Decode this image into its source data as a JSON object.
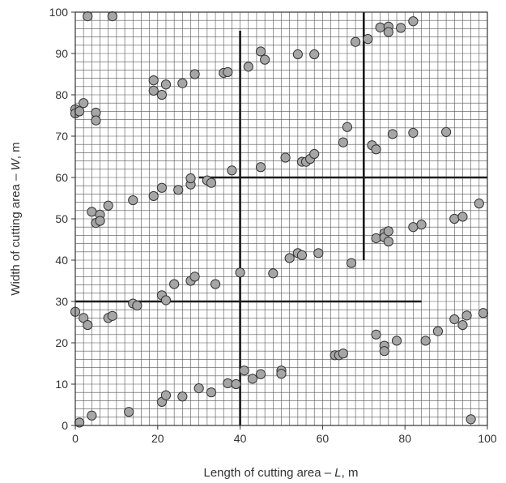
{
  "chart_data": {
    "type": "scatter",
    "title": "",
    "xlabel": "Length of cutting area – L, m",
    "xlabel_prefix": "Length of cutting area – ",
    "xlabel_var": "L",
    "xlabel_suffix": ", m",
    "ylabel": "Width of cutting area – W, m",
    "ylabel_prefix": "Width of cutting area – ",
    "ylabel_var": "W",
    "ylabel_suffix": ", m",
    "xlim": [
      0,
      100
    ],
    "ylim": [
      0,
      100
    ],
    "x_ticks": [
      0,
      20,
      40,
      60,
      80,
      100
    ],
    "y_ticks": [
      0,
      10,
      20,
      30,
      40,
      50,
      60,
      70,
      80,
      90,
      100
    ],
    "x_tick_labels": [
      "0",
      "20",
      "40",
      "60",
      "80",
      "100"
    ],
    "y_tick_labels": [
      "0",
      "10",
      "20",
      "30",
      "40",
      "50",
      "60",
      "70",
      "80",
      "90",
      "100"
    ],
    "grid": true,
    "grid_minor_x_step": 2,
    "grid_minor_y_step": 2,
    "legend": "none",
    "colors": {
      "marker_fill": "#a6a6a6",
      "marker_edge": "#333333",
      "grid": "#555555",
      "boundary": "#1a1a1a"
    },
    "boundary_lines": [
      {
        "from": [
          40,
          0
        ],
        "to": [
          40,
          95.5
        ]
      },
      {
        "from": [
          70,
          40
        ],
        "to": [
          70,
          100
        ]
      },
      {
        "from": [
          0,
          30
        ],
        "to": [
          84,
          30
        ]
      },
      {
        "from": [
          30,
          60
        ],
        "to": [
          100,
          60
        ]
      }
    ],
    "points": [
      [
        3,
        99
      ],
      [
        9,
        99
      ],
      [
        0,
        76.5
      ],
      [
        0,
        75.5
      ],
      [
        1,
        76
      ],
      [
        2,
        78
      ],
      [
        5,
        75.7
      ],
      [
        5,
        73.8
      ],
      [
        19,
        83.5
      ],
      [
        19,
        81
      ],
      [
        21,
        80
      ],
      [
        22,
        82.5
      ],
      [
        26,
        82.8
      ],
      [
        29,
        85
      ],
      [
        36,
        85.3
      ],
      [
        37,
        85.5
      ],
      [
        42,
        86.8
      ],
      [
        45,
        90.5
      ],
      [
        46,
        88.5
      ],
      [
        54,
        89.8
      ],
      [
        58,
        89.8
      ],
      [
        68,
        92.8
      ],
      [
        71,
        93.5
      ],
      [
        74,
        96.3
      ],
      [
        76,
        96.5
      ],
      [
        76,
        95.2
      ],
      [
        79,
        96.2
      ],
      [
        82,
        97.8
      ],
      [
        4,
        51.7
      ],
      [
        5,
        49
      ],
      [
        6,
        51
      ],
      [
        6,
        49.5
      ],
      [
        8,
        53.2
      ],
      [
        14,
        54.5
      ],
      [
        19,
        55.5
      ],
      [
        21,
        57.5
      ],
      [
        25,
        57
      ],
      [
        28,
        58.3
      ],
      [
        28,
        59.8
      ],
      [
        32,
        59.3
      ],
      [
        33,
        58.7
      ],
      [
        38,
        61.7
      ],
      [
        45,
        62.5
      ],
      [
        51,
        64.8
      ],
      [
        55,
        63.8
      ],
      [
        56,
        63.8
      ],
      [
        57,
        64.5
      ],
      [
        58,
        65.7
      ],
      [
        65,
        68.5
      ],
      [
        66,
        72.2
      ],
      [
        72,
        67.8
      ],
      [
        73,
        66.8
      ],
      [
        77,
        70.5
      ],
      [
        82,
        70.8
      ],
      [
        90,
        71
      ],
      [
        0,
        27.5
      ],
      [
        2,
        26
      ],
      [
        3,
        24.3
      ],
      [
        8,
        26
      ],
      [
        9,
        26.5
      ],
      [
        14,
        29.5
      ],
      [
        15,
        29
      ],
      [
        21,
        31.5
      ],
      [
        22,
        30.3
      ],
      [
        24,
        34.2
      ],
      [
        28,
        35
      ],
      [
        29,
        36
      ],
      [
        34,
        34.2
      ],
      [
        40,
        37
      ],
      [
        48,
        36.8
      ],
      [
        52,
        40.5
      ],
      [
        54,
        41.7
      ],
      [
        55,
        41.2
      ],
      [
        59,
        41.7
      ],
      [
        67,
        39.3
      ],
      [
        73,
        45.3
      ],
      [
        75,
        46.5
      ],
      [
        75,
        45.5
      ],
      [
        76,
        47
      ],
      [
        76,
        44.5
      ],
      [
        82,
        48
      ],
      [
        84,
        48.6
      ],
      [
        92,
        50
      ],
      [
        94,
        50.5
      ],
      [
        98,
        53.7
      ],
      [
        1,
        0.7
      ],
      [
        4,
        2.4
      ],
      [
        13,
        3.3
      ],
      [
        21,
        5.7
      ],
      [
        22,
        7.3
      ],
      [
        26,
        7
      ],
      [
        30,
        9
      ],
      [
        33,
        8
      ],
      [
        37,
        10.2
      ],
      [
        39,
        10
      ],
      [
        41,
        13.3
      ],
      [
        43,
        11.3
      ],
      [
        45,
        12.4
      ],
      [
        50,
        13.3
      ],
      [
        50,
        12.5
      ],
      [
        63,
        17
      ],
      [
        64,
        17
      ],
      [
        65,
        17.4
      ],
      [
        73,
        22
      ],
      [
        75,
        19.3
      ],
      [
        75,
        18
      ],
      [
        78,
        20.5
      ],
      [
        85,
        20.5
      ],
      [
        88,
        22.8
      ],
      [
        92,
        25.7
      ],
      [
        94,
        24.3
      ],
      [
        95,
        26.6
      ],
      [
        99,
        27.2
      ],
      [
        96,
        1.5
      ]
    ]
  }
}
